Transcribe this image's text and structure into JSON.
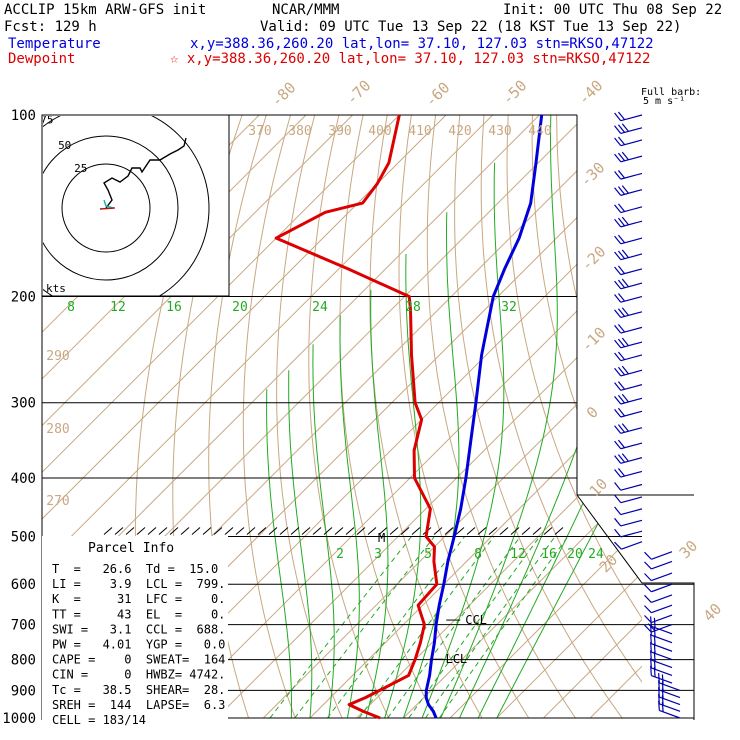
{
  "header": {
    "model": "ACCLIP 15km ARW-GFS init",
    "org": "NCAR/MMM",
    "init": "Init: 00 UTC Thu 08 Sep 22",
    "fcst": "Fcst:  129 h",
    "valid": "Valid: 09 UTC Tue 13 Sep 22 (18 KST Tue 13 Sep 22)",
    "temp_label": "Temperature",
    "temp_info": "x,y=388.36,260.20   lat,lon= 37.10, 127.03  stn=RKSO,47122",
    "dew_label": "Dewpoint",
    "dew_info": "☆ x,y=388.36,260.20   lat,lon= 37.10, 127.03  stn=RKSO,47122"
  },
  "colors": {
    "temperature": "#0000dd",
    "dewpoint": "#dd0000",
    "isotherm": "#c8a882",
    "dry_adiabat": "#c8a882",
    "moist_adiabat": "#22aa22",
    "mixing_ratio": "#22aa22",
    "axis": "#000000"
  },
  "barb_legend": {
    "title": "Full barb:",
    "value": "5 m s⁻¹"
  },
  "hodograph": {
    "rings": [
      "75",
      "50",
      "25"
    ],
    "unit": "kts"
  },
  "markers": {
    "ccl": "CCL",
    "lcl": "LCL",
    "m": "M"
  },
  "parcel": {
    "title": "Parcel Info",
    "rows": [
      "T  =   26.6  Td =  15.0",
      "LI =    3.9  LCL =  799.",
      "K  =     31  LFC =    0.",
      "TT =     43  EL  =    0.",
      "SWI =   3.1  CCL =  688.",
      "PW =   4.01  YGP =   0.0",
      "CAPE =    0  SWEAT=  164",
      "CIN =     0  HWBZ= 4742.",
      "Tc =   38.5  SHEAR=  28.",
      "SREH =  144  LAPSE=  6.3",
      "CELL = 183/14"
    ]
  },
  "chart_data": {
    "type": "line",
    "title": "",
    "pressure_ticks": [
      "100",
      "200",
      "300",
      "400",
      "500",
      "600",
      "700",
      "800",
      "900",
      "1000"
    ],
    "y_scale": "log pressure (hPa), 1000 at bottom, 100 at top",
    "x_range_degC": [
      -40,
      40
    ],
    "isotherm_labels": [
      "-80",
      "-70",
      "-60",
      "-50",
      "-40",
      "-30",
      "-20",
      "-10",
      "0",
      "10",
      "20",
      "30",
      "40"
    ],
    "theta_labels": [
      "370",
      "380",
      "390",
      "400",
      "410",
      "420",
      "430",
      "440"
    ],
    "theta_left_labels": [
      "290",
      "280",
      "270"
    ],
    "mixing_ratio_labels_upper": [
      "8",
      "12",
      "16",
      "20",
      "24",
      "28",
      "32"
    ],
    "mixing_ratio_labels_lower": [
      "2",
      "3",
      "5",
      "8",
      "12",
      "16",
      "20",
      "24"
    ],
    "series": [
      {
        "name": "Temperature",
        "points": [
          [
            1000,
            27.0
          ],
          [
            975,
            25.0
          ],
          [
            950,
            22.5
          ],
          [
            925,
            20.5
          ],
          [
            900,
            19.0
          ],
          [
            850,
            16.5
          ],
          [
            800,
            13.5
          ],
          [
            750,
            10.5
          ],
          [
            700,
            7.0
          ],
          [
            650,
            3.5
          ],
          [
            600,
            0.0
          ],
          [
            550,
            -4.0
          ],
          [
            500,
            -8.0
          ],
          [
            450,
            -12.5
          ],
          [
            400,
            -18.0
          ],
          [
            350,
            -24.5
          ],
          [
            300,
            -32.0
          ],
          [
            250,
            -41.0
          ],
          [
            200,
            -51.0
          ],
          [
            180,
            -54.5
          ],
          [
            160,
            -58.0
          ],
          [
            140,
            -63.0
          ],
          [
            120,
            -70.5
          ],
          [
            100,
            -79.5
          ]
        ]
      },
      {
        "name": "Dewpoint",
        "points": [
          [
            1000,
            15.0
          ],
          [
            975,
            10.0
          ],
          [
            950,
            5.5
          ],
          [
            925,
            7.5
          ],
          [
            900,
            9.0
          ],
          [
            850,
            12.0
          ],
          [
            800,
            10.0
          ],
          [
            750,
            7.5
          ],
          [
            700,
            4.5
          ],
          [
            650,
            -1.0
          ],
          [
            600,
            -1.5
          ],
          [
            550,
            -7.0
          ],
          [
            520,
            -10.0
          ],
          [
            500,
            -14.0
          ],
          [
            450,
            -19.0
          ],
          [
            400,
            -29.0
          ],
          [
            360,
            -35.0
          ],
          [
            320,
            -40.0
          ],
          [
            300,
            -45.0
          ],
          [
            250,
            -56.0
          ],
          [
            210,
            -66.0
          ],
          [
            200,
            -69.0
          ],
          [
            180,
            -88.0
          ],
          [
            160,
            -110.0
          ],
          [
            145,
            -105.0
          ],
          [
            140,
            -99.0
          ],
          [
            130,
            -100.0
          ],
          [
            120,
            -102.0
          ],
          [
            100,
            -110.0
          ]
        ]
      }
    ]
  }
}
